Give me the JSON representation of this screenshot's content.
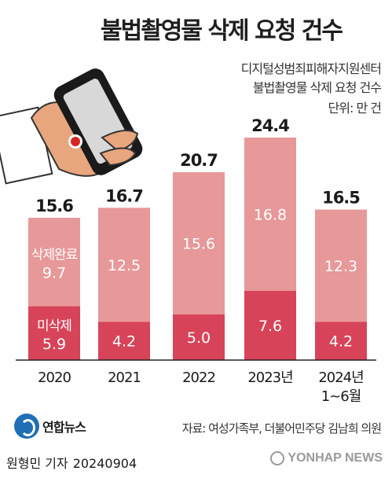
{
  "title": "불법촬영물 삭제 요청 건수",
  "subtitle": {
    "line1": "디지털성범죄피해자지원센터",
    "line2": "불법촬영물 삭제 요청 건수",
    "unit": "단위: 만 건"
  },
  "colors": {
    "light": "#e79899",
    "dark": "#d74459",
    "ink": "#1a1a1a"
  },
  "chart_data": {
    "type": "bar",
    "stacked": true,
    "categories": [
      "2020",
      "2021",
      "2022",
      "2023년",
      "2024년 1~6월"
    ],
    "category_lines": [
      [
        "2020"
      ],
      [
        "2021"
      ],
      [
        "2022"
      ],
      [
        "2023년"
      ],
      [
        "2024년",
        "1~6월"
      ]
    ],
    "series": [
      {
        "name": "미삭제",
        "values": [
          5.9,
          4.2,
          5.0,
          7.6,
          4.2
        ]
      },
      {
        "name": "삭제완료",
        "values": [
          9.7,
          12.5,
          15.6,
          16.8,
          12.3
        ]
      }
    ],
    "totals": [
      15.6,
      16.7,
      20.7,
      24.4,
      16.5
    ],
    "inline_series_labels": {
      "dark": "미삭제",
      "light": "삭제완료"
    }
  },
  "source": "자료: 여성가족부, 더불어민주당 김남희 의원",
  "logo_text": "연합뉴스",
  "reporter": "원형민 기자",
  "date": "20240904",
  "watermark": "YONHAP NEWS"
}
